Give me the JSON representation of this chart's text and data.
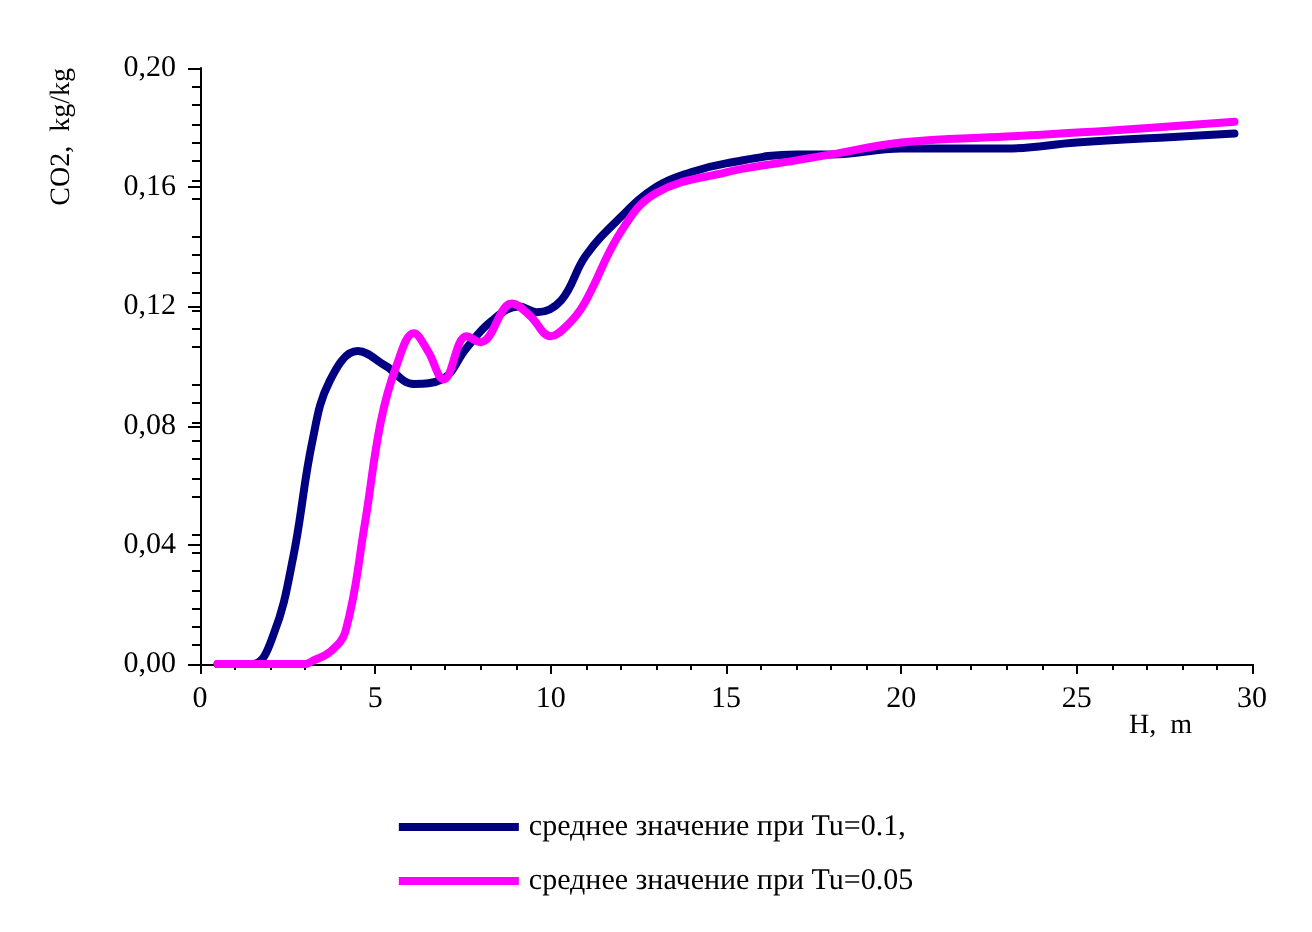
{
  "chart_data": {
    "type": "line",
    "xlabel": "H,  m",
    "ylabel": "CO2,  kg/kg",
    "xlim": [
      0,
      30
    ],
    "xticks": [
      0,
      5,
      10,
      15,
      20,
      25,
      30
    ],
    "ylim": [
      0,
      0.2
    ],
    "yticks": [
      {
        "value": 0,
        "label": "0,00"
      },
      {
        "value": 0.04,
        "label": "0,04"
      },
      {
        "value": 0.08,
        "label": "0,08"
      },
      {
        "value": 0.12,
        "label": "0,12"
      },
      {
        "value": 0.16,
        "label": "0,16"
      },
      {
        "value": 0.2,
        "label": "0,20"
      }
    ],
    "grid": false,
    "legend": "bottom",
    "marker": "none",
    "line_style": "solid",
    "series": [
      {
        "name": "среднее значение при Tu=0.1,",
        "color": "#000080",
        "x": [
          0.5,
          1.5,
          2.1,
          2.66,
          3.2,
          3.7,
          4.5,
          5.3,
          6.1,
          6.9,
          7.6,
          8.3,
          9.1,
          9.6,
          10.3,
          11,
          12,
          13,
          14,
          15,
          17,
          18,
          20,
          23,
          25,
          28,
          29.5
        ],
        "values": [
          0,
          0,
          0.01,
          0.036,
          0.0745,
          0.095,
          0.105,
          0.1,
          0.094,
          0.0955,
          0.106,
          0.115,
          0.12,
          0.118,
          0.122,
          0.137,
          0.15,
          0.16,
          0.165,
          0.168,
          0.171,
          0.171,
          0.173,
          0.173,
          0.175,
          0.177,
          0.178
        ]
      },
      {
        "name": "среднее значение при Tu=0.05",
        "color": "#ff00ff",
        "x": [
          0.5,
          3,
          3.2,
          3.7,
          4.15,
          4.7,
          5.15,
          5.6,
          6.1,
          6.5,
          6.95,
          7.6,
          8,
          8.9,
          9.4,
          10,
          10.5,
          10.96,
          12,
          13,
          15,
          17,
          18,
          20,
          23,
          26,
          29.5
        ],
        "values": [
          0,
          0,
          0.001,
          0.004,
          0.011,
          0.047,
          0.081,
          0.1,
          0.111,
          0.105,
          0.0955,
          0.11,
          0.108,
          0.121,
          0.117,
          0.11,
          0.114,
          0.121,
          0.145,
          0.158,
          0.165,
          0.169,
          0.171,
          0.175,
          0.177,
          0.179,
          0.182
        ]
      }
    ]
  }
}
